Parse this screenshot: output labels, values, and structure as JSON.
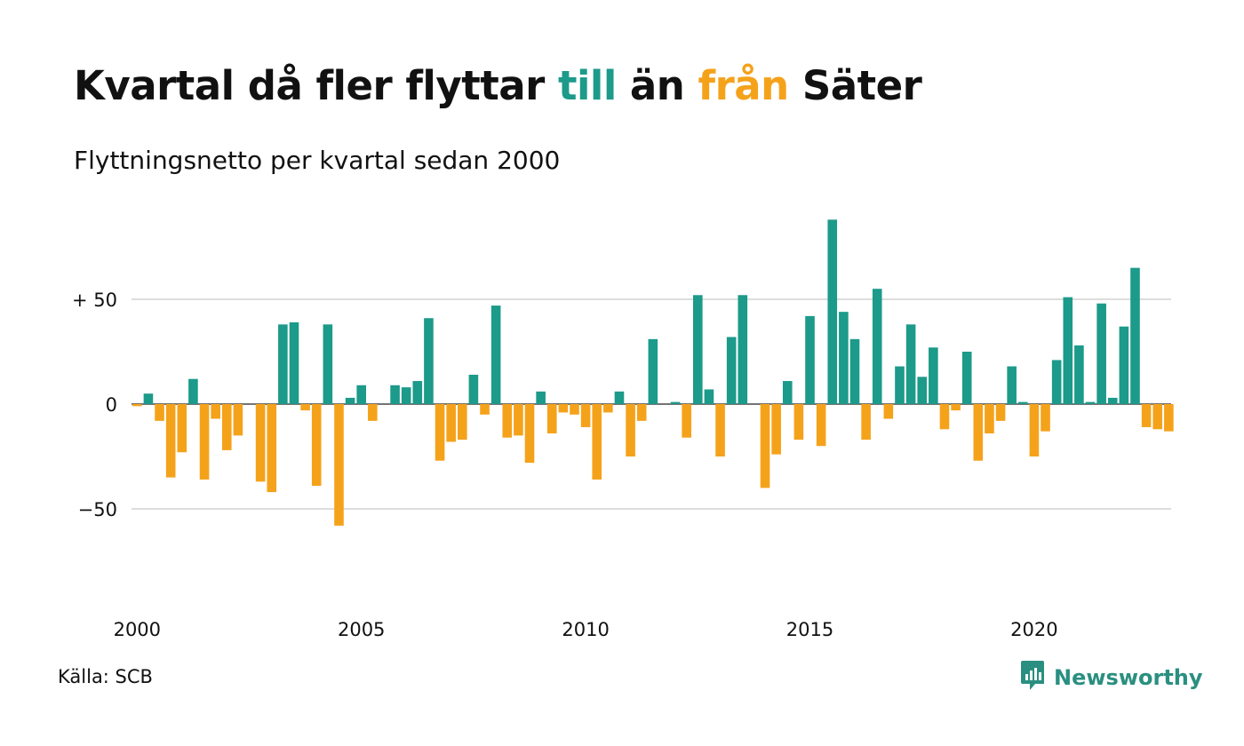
{
  "title": {
    "part1": "Kvartal då fler flyttar ",
    "till": "till",
    "part2": " än ",
    "fran": "från",
    "part3": " Säter"
  },
  "subtitle": "Flyttningsnetto per kvartal sedan 2000",
  "source": "Källa: SCB",
  "brand": "Newsworthy",
  "colors": {
    "positive": "#1c9a8a",
    "negative": "#f5a21b",
    "grid": "#dddddd",
    "brand": "#2a8f80"
  },
  "chart_data": {
    "type": "bar",
    "title": "Kvartal då fler flyttar till än från Säter",
    "subtitle": "Flyttningsnetto per kvartal sedan 2000",
    "ylim": [
      -75,
      90
    ],
    "y_ticks": [
      50,
      0,
      -50
    ],
    "y_tick_labels": [
      "+ 50",
      "0",
      "−50"
    ],
    "x_tick_labels": [
      "2000",
      "2005",
      "2010",
      "2015",
      "2020"
    ],
    "grid": true,
    "start_year": 2000,
    "values": [
      -1,
      5,
      -8,
      -35,
      -23,
      12,
      -36,
      -7,
      -22,
      -15,
      0,
      -37,
      -42,
      38,
      39,
      -3,
      -39,
      38,
      -58,
      3,
      9,
      -8,
      0,
      9,
      8,
      11,
      41,
      -27,
      -18,
      -17,
      14,
      -5,
      47,
      -16,
      -15,
      -28,
      6,
      -14,
      -4,
      -5,
      -11,
      -36,
      -4,
      6,
      -25,
      -8,
      31,
      0,
      1,
      -16,
      52,
      7,
      -25,
      32,
      52,
      0,
      -40,
      -24,
      11,
      -17,
      42,
      -20,
      88,
      44,
      31,
      -17,
      55,
      -7,
      18,
      38,
      13,
      27,
      -12,
      -3,
      25,
      -27,
      -14,
      -8,
      18,
      1,
      -25,
      -13,
      21,
      51,
      28,
      1,
      48,
      3,
      37,
      65,
      -11,
      -12,
      -13
    ]
  }
}
